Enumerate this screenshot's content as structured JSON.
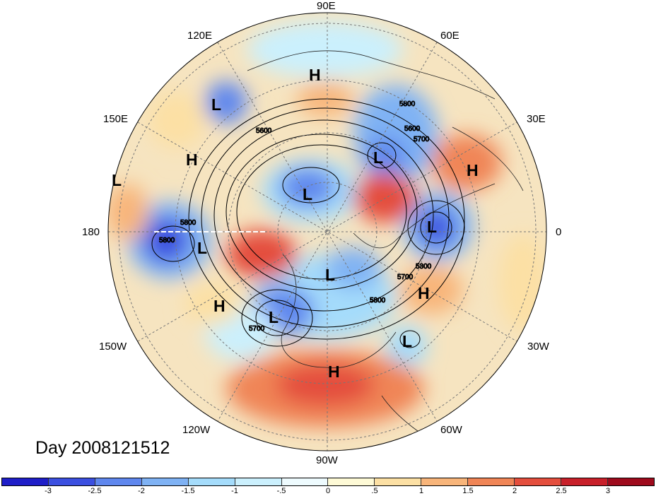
{
  "title": "Day 2008121512",
  "lon_labels": {
    "n90e": "90E",
    "n120e": "120E",
    "n60e": "60E",
    "n150e": "150E",
    "n30e": "30E",
    "n180": "180",
    "n0": "0",
    "n150w": "150W",
    "n30w": "30W",
    "n120w": "120W",
    "n60w": "60W",
    "n90w": "90W"
  },
  "pressure_centers": [
    {
      "type": "H",
      "label": "H"
    },
    {
      "type": "L",
      "label": "L"
    },
    {
      "type": "L",
      "label": "L"
    },
    {
      "type": "H",
      "label": "H"
    },
    {
      "type": "L",
      "label": "L"
    },
    {
      "type": "L",
      "label": "L"
    },
    {
      "type": "H",
      "label": "H"
    },
    {
      "type": "L",
      "label": "L"
    },
    {
      "type": "L",
      "label": "L"
    },
    {
      "type": "L",
      "label": "L"
    },
    {
      "type": "L",
      "label": "L"
    },
    {
      "type": "H",
      "label": "H"
    },
    {
      "type": "H",
      "label": "H"
    },
    {
      "type": "L",
      "label": "L"
    },
    {
      "type": "H",
      "label": "H"
    }
  ],
  "contour_labels": {
    "c1": "5800",
    "c2": "5700",
    "c3": "5600",
    "c4": "5800",
    "c5": "5600",
    "c6": "5800",
    "c7": "5700",
    "c8": "5800",
    "c9": "5800",
    "c10": "5700"
  },
  "colorbar": {
    "colors": [
      "#1f1ec8",
      "#3b4fe0",
      "#5f87ee",
      "#7fb2f4",
      "#a5dcfb",
      "#cbf0fd",
      "#eefbfe",
      "#fefad6",
      "#fce0a4",
      "#f8b57a",
      "#f08556",
      "#e44e3d",
      "#c8202a",
      "#9e0a1c"
    ],
    "ticks": [
      "-3",
      "-2.5",
      "-2",
      "-1.5",
      "-1",
      "-.5",
      "0",
      ".5",
      "1",
      "1.5",
      "2",
      "2.5",
      "3"
    ]
  }
}
